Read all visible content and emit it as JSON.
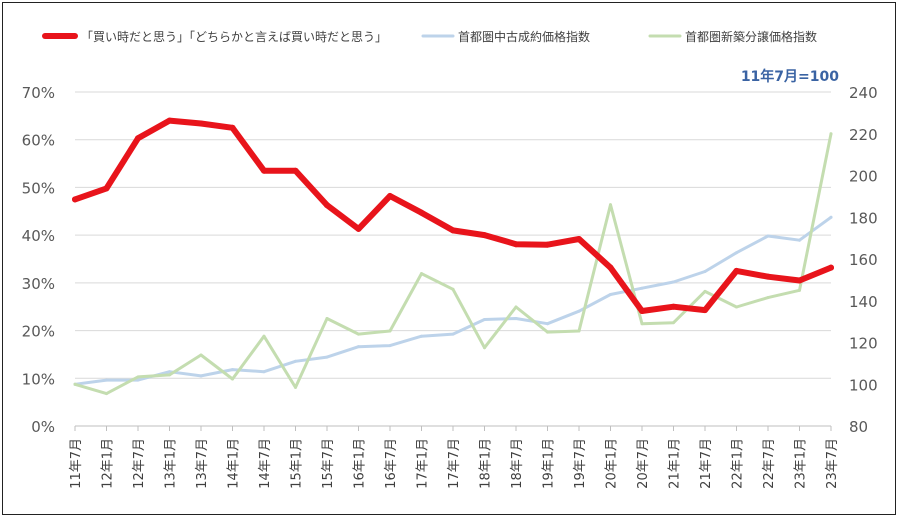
{
  "chart_data": {
    "type": "line",
    "note": "11年7月=100",
    "categories": [
      "11年7月",
      "12年1月",
      "12年7月",
      "13年1月",
      "13年7月",
      "14年1月",
      "14年7月",
      "15年1月",
      "15年7月",
      "16年1月",
      "16年7月",
      "17年1月",
      "17年7月",
      "18年1月",
      "18年7月",
      "19年1月",
      "19年7月",
      "20年1月",
      "20年7月",
      "21年1月",
      "21年7月",
      "22年1月",
      "22年7月",
      "23年1月",
      "23年7月"
    ],
    "left_axis": {
      "ticks": [
        "0%",
        "10%",
        "20%",
        "30%",
        "40%",
        "50%",
        "60%",
        "70%"
      ],
      "ylim": [
        0,
        70
      ]
    },
    "right_axis": {
      "ticks": [
        "80",
        "100",
        "120",
        "140",
        "160",
        "180",
        "200",
        "220",
        "240"
      ],
      "ylim": [
        80,
        240
      ]
    },
    "grid": true,
    "legend_position": "top",
    "series": [
      {
        "name": "「買い時だと思う」「どちらかと言えば買い時だと思う」",
        "axis": "left",
        "color": "#e8141b",
        "width": 6,
        "values": [
          47.5,
          49.8,
          60.3,
          64.0,
          63.4,
          62.5,
          53.5,
          53.5,
          46.3,
          41.3,
          48.2,
          44.7,
          41.0,
          40.0,
          38.1,
          38.0,
          39.2,
          33.2,
          24.1,
          25.0,
          24.3,
          32.5,
          31.3,
          30.5,
          33.2
        ]
      },
      {
        "name": "首都圏中古成約価格指数",
        "axis": "right",
        "color": "#bdd3ea",
        "width": 3,
        "values": [
          100,
          102,
          102,
          106,
          104,
          107,
          106,
          111,
          113,
          118,
          118.5,
          123,
          124,
          131,
          131.5,
          129,
          135,
          143,
          146,
          149,
          154,
          163,
          171,
          169,
          180
        ]
      },
      {
        "name": "首都圏新築分譲価格指数",
        "axis": "right",
        "color": "#c4ddb0",
        "width": 3,
        "values": [
          100,
          95.5,
          103.5,
          104.5,
          114,
          102.5,
          123,
          98.5,
          131.5,
          124,
          125.5,
          153,
          145.5,
          117.5,
          137,
          125,
          125.5,
          186,
          129,
          129.5,
          144.5,
          137,
          141.5,
          145,
          220
        ]
      }
    ]
  }
}
